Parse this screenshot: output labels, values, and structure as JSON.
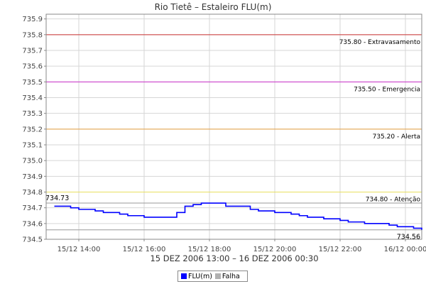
{
  "chart_data": {
    "type": "line",
    "title": "Rio Tietê – Estaleiro FLU(m)",
    "x_range_label": "15 DEZ 2006 13:00 – 16 DEZ 2006 00:30",
    "x_range_minutes": [
      0,
      690
    ],
    "ylim": [
      734.5,
      735.93
    ],
    "y_ticks": [
      734.5,
      734.6,
      734.7,
      734.8,
      734.9,
      735.0,
      735.1,
      735.2,
      735.3,
      735.4,
      735.5,
      735.6,
      735.7,
      735.8,
      735.9
    ],
    "y_tick_labels": [
      "734.5",
      "734.6",
      "734.7",
      "734.8",
      "734.9",
      "735.0",
      "735.1",
      "735.2",
      "735.3",
      "735.4",
      "735.5",
      "735.6",
      "735.7",
      "735.8",
      "735.9"
    ],
    "x_ticks": [
      {
        "label": "15/12 14:00",
        "minute": 60
      },
      {
        "label": "15/12 16:00",
        "minute": 180
      },
      {
        "label": "15/12 18:00",
        "minute": 300
      },
      {
        "label": "15/12 20:00",
        "minute": 420
      },
      {
        "label": "15/12 22:00",
        "minute": 540
      },
      {
        "label": "16/12 00:00",
        "minute": 660
      }
    ],
    "grid": true,
    "thresholds": [
      {
        "value": 735.8,
        "label": "735.80 - Extravasamento",
        "color": "#cc3333"
      },
      {
        "value": 735.5,
        "label": "735.50 - Emergencia",
        "color": "#cc33cc"
      },
      {
        "value": 735.2,
        "label": "735.20 - Alerta",
        "color": "#e8a040"
      },
      {
        "value": 734.8,
        "label": "734.80 - Atenção",
        "color": "#e8e060"
      }
    ],
    "reference_lines": [
      {
        "value": 734.73,
        "label": "734.73",
        "color": "#999999"
      },
      {
        "value": 734.56,
        "label": "734.56",
        "color": "#999999"
      }
    ],
    "series": [
      {
        "name": "FLU(m)",
        "color": "#0000ff",
        "x_minutes": [
          15,
          30,
          45,
          60,
          75,
          90,
          105,
          120,
          135,
          150,
          165,
          180,
          195,
          210,
          225,
          240,
          255,
          270,
          285,
          300,
          315,
          330,
          345,
          360,
          375,
          390,
          405,
          420,
          435,
          450,
          465,
          480,
          495,
          510,
          525,
          540,
          555,
          570,
          585,
          600,
          615,
          630,
          645,
          660,
          675,
          690
        ],
        "values": [
          734.71,
          734.71,
          734.7,
          734.69,
          734.69,
          734.68,
          734.67,
          734.67,
          734.66,
          734.65,
          734.65,
          734.64,
          734.64,
          734.64,
          734.64,
          734.67,
          734.71,
          734.72,
          734.73,
          734.73,
          734.73,
          734.71,
          734.71,
          734.71,
          734.69,
          734.68,
          734.68,
          734.67,
          734.67,
          734.66,
          734.65,
          734.64,
          734.64,
          734.63,
          734.63,
          734.62,
          734.61,
          734.61,
          734.6,
          734.6,
          734.6,
          734.59,
          734.58,
          734.58,
          734.57,
          734.56
        ]
      }
    ],
    "legend": [
      {
        "name": "FLU(m)",
        "color": "#0000ff"
      },
      {
        "name": "Falha",
        "color": "#b0b0b0"
      }
    ]
  }
}
